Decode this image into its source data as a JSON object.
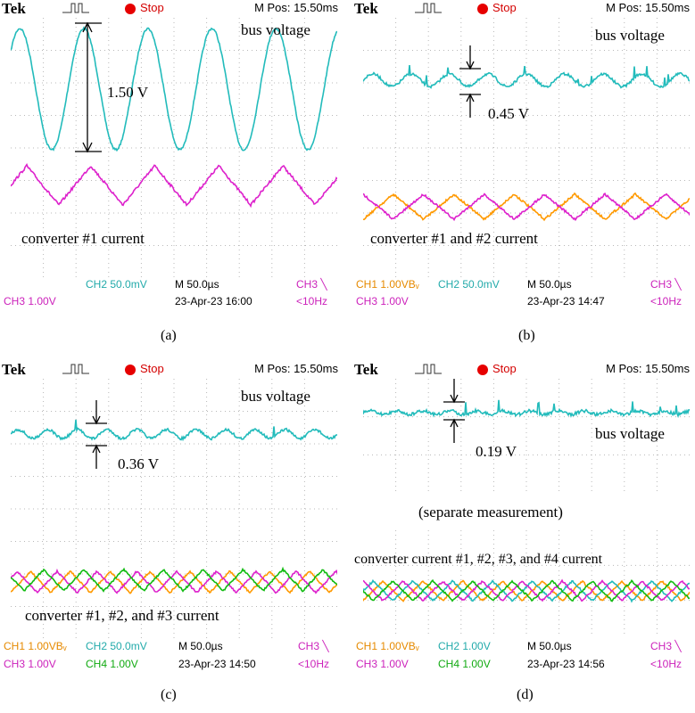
{
  "panels": [
    {
      "id": "a",
      "header": {
        "brand": "Tek",
        "status": "Stop",
        "mpos": "M Pos: 15.50ms"
      },
      "footer": {
        "ch1": "",
        "ch2": "CH2  50.0mV",
        "ch3": "CH3  1.00V",
        "ch4": "",
        "time": "M 50.0µs",
        "date": "23-Apr-23 16:00",
        "trig": "CH3 ╲",
        "freq": "<10Hz"
      },
      "labels": {
        "voltage": "bus voltage",
        "current": "converter #1 current",
        "ripple": "1.50 V",
        "note": ""
      },
      "caption": "(a)"
    },
    {
      "id": "b",
      "header": {
        "brand": "Tek",
        "status": "Stop",
        "mpos": "M Pos: 15.50ms"
      },
      "footer": {
        "ch1": "CH1  1.00VBᵥ",
        "ch2": "CH2  50.0mV",
        "ch3": "CH3  1.00V",
        "ch4": "",
        "time": "M 50.0µs",
        "date": "23-Apr-23 14:47",
        "trig": "CH3 ╲",
        "freq": "<10Hz"
      },
      "labels": {
        "voltage": "bus voltage",
        "current": "converter #1 and #2 current",
        "ripple": "0.45 V",
        "note": ""
      },
      "caption": "(b)"
    },
    {
      "id": "c",
      "header": {
        "brand": "Tek",
        "status": "Stop",
        "mpos": "M Pos: 15.50ms"
      },
      "footer": {
        "ch1": "CH1  1.00VBᵥ",
        "ch2": "CH2  50.0mV",
        "ch3": "CH3  1.00V",
        "ch4": "CH4  1.00V",
        "time": "M 50.0µs",
        "date": "23-Apr-23 14:50",
        "trig": "CH3 ╲",
        "freq": "<10Hz"
      },
      "labels": {
        "voltage": "bus voltage",
        "current": "converter #1, #2, and #3 current",
        "ripple": "0.36 V",
        "note": ""
      },
      "caption": "(c)"
    },
    {
      "id": "d",
      "header": {
        "brand": "Tek",
        "status": "Stop",
        "mpos": "M Pos: 15.50ms"
      },
      "footer": {
        "ch1": "CH1  1.00VBᵥ",
        "ch2": "CH2  1.00V",
        "ch3": "CH3  1.00V",
        "ch4": "CH4  1.00V",
        "time": "M 50.0µs",
        "date": "23-Apr-23 14:56",
        "trig": "CH3 ╲",
        "freq": "<10Hz"
      },
      "labels": {
        "voltage": "bus voltage",
        "current": "converter current #1, #2, #3, and #4 current",
        "ripple": "0.19 V",
        "note": "(separate measurement)"
      },
      "caption": "(d)"
    }
  ],
  "colors": {
    "ch1": "#ff9900",
    "ch2": "#22bbbb",
    "ch3": "#dd22cc",
    "ch4": "#11bb11",
    "grid": "#b8b8b8"
  },
  "chart_data": [
    {
      "type": "line",
      "panel": "a",
      "series": [
        {
          "name": "bus voltage",
          "periods": 5.3,
          "peak_to_peak_V": 1.5
        },
        {
          "name": "converter #1 current",
          "periods": 5.3
        }
      ]
    },
    {
      "type": "line",
      "panel": "b",
      "series": [
        {
          "name": "bus voltage",
          "peak_to_peak_V": 0.45
        },
        {
          "name": "converter #1 and #2 current"
        }
      ]
    },
    {
      "type": "line",
      "panel": "c",
      "series": [
        {
          "name": "bus voltage",
          "peak_to_peak_V": 0.36
        },
        {
          "name": "converter #1, #2, and #3 current"
        }
      ]
    },
    {
      "type": "line",
      "panel": "d",
      "series": [
        {
          "name": "bus voltage",
          "peak_to_peak_V": 0.19
        },
        {
          "name": "converter current #1, #2, #3, and #4 current"
        }
      ]
    }
  ]
}
